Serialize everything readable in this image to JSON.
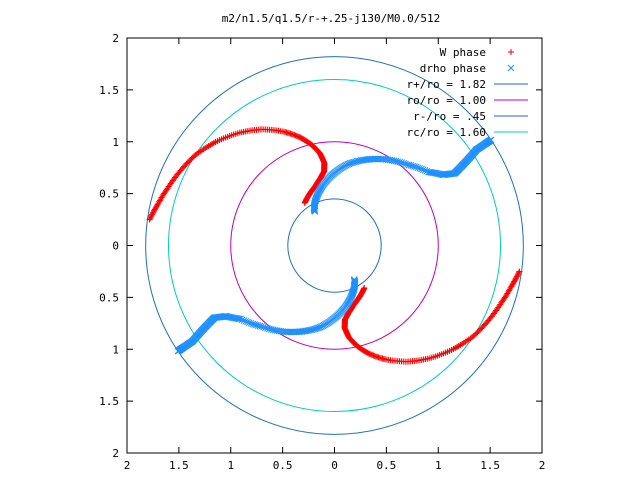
{
  "chart_data": {
    "type": "scatter",
    "title": "m2/n1.5/q1.5/r-+.25-j130/M0.0/512",
    "xlim": [
      -2,
      2
    ],
    "ylim": [
      -2,
      2
    ],
    "x_tick_labels": [
      "2",
      "1.5",
      "1",
      "0.5",
      "0",
      "0.5",
      "1",
      "1.5",
      "2"
    ],
    "y_tick_labels": [
      "2",
      "1.5",
      "1",
      "0.5",
      "0",
      "0.5",
      "1",
      "1.5",
      "2"
    ],
    "legend_position": "top-right",
    "grid": false,
    "series": [
      {
        "name": "W phase",
        "kind": "points",
        "marker": "+",
        "color": "#ff0000",
        "arm_1_polar": {
          "r": [
            1.8,
            1.75,
            1.7,
            1.65,
            1.6,
            1.52,
            1.42,
            1.32,
            1.2,
            1.1,
            1.0,
            0.9,
            0.8,
            0.72,
            0.66,
            0.6,
            0.55,
            0.5
          ],
          "theta_deg": [
            172,
            167,
            161,
            154,
            147,
            139,
            130,
            122,
            114,
            108,
            103,
            99,
            97,
            98,
            102,
            108,
            116,
            125
          ]
        },
        "arm_2_polar": {
          "r": [
            1.8,
            1.75,
            1.7,
            1.65,
            1.6,
            1.52,
            1.42,
            1.32,
            1.2,
            1.1,
            1.0,
            0.9,
            0.8,
            0.72,
            0.66,
            0.6,
            0.55,
            0.5
          ],
          "theta_deg": [
            352,
            347,
            341,
            334,
            327,
            319,
            310,
            302,
            294,
            288,
            283,
            279,
            277,
            278,
            282,
            288,
            296,
            305
          ]
        }
      },
      {
        "name": "drho phase",
        "kind": "points",
        "marker": "x",
        "color": "#1e90ff",
        "arm_1_polar": {
          "r": [
            0.38,
            0.42,
            0.5,
            0.6,
            0.7,
            0.8,
            0.88,
            0.96,
            1.05,
            1.15,
            1.25,
            1.35,
            1.45,
            1.55,
            1.65,
            1.75,
            1.82
          ],
          "theta_deg": [
            120,
            118,
            110,
            100,
            90,
            80,
            70,
            60,
            48,
            38,
            33,
            31,
            32,
            33,
            34,
            34,
            34
          ]
        },
        "arm_2_polar": {
          "r": [
            0.38,
            0.42,
            0.5,
            0.6,
            0.7,
            0.8,
            0.88,
            0.96,
            1.05,
            1.15,
            1.25,
            1.35,
            1.45,
            1.55,
            1.65,
            1.75,
            1.82
          ],
          "theta_deg": [
            300,
            298,
            290,
            280,
            270,
            260,
            250,
            240,
            228,
            218,
            213,
            211,
            212,
            213,
            214,
            214,
            214
          ]
        }
      },
      {
        "name": "r+/ro = 1.82",
        "kind": "circle",
        "radius": 1.82,
        "color": "#1e6fc8"
      },
      {
        "name": "ro/ro = 1.00",
        "kind": "circle",
        "radius": 1.0,
        "color": "#c000c0"
      },
      {
        "name": "r-/ro = .45",
        "kind": "circle",
        "radius": 0.45,
        "color": "#1e6fc8"
      },
      {
        "name": "rc/ro = 1.60",
        "kind": "circle",
        "radius": 1.6,
        "color": "#00cccc"
      }
    ]
  }
}
